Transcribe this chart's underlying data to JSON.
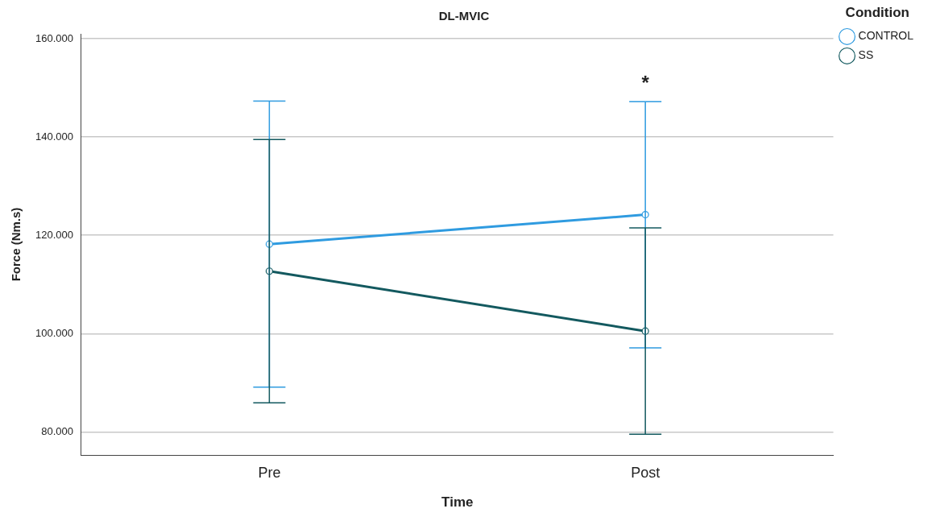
{
  "chart_data": {
    "type": "line",
    "title": "DL-MVIC",
    "xlabel": "Time",
    "ylabel": "Force (Nm.s)",
    "legend_title": "Condition",
    "categories": [
      "Pre",
      "Post"
    ],
    "series": [
      {
        "name": "CONTROL",
        "color": "#2f9be0",
        "values": [
          118.2,
          124.2
        ],
        "errors": [
          [
            89.1,
            147.3
          ],
          [
            97.1,
            147.2
          ]
        ]
      },
      {
        "name": "SS",
        "color": "#13595f",
        "values": [
          112.7,
          100.5
        ],
        "errors": [
          [
            85.9,
            139.5
          ],
          [
            79.5,
            121.5
          ]
        ]
      }
    ],
    "ylim": [
      75.3,
      161
    ],
    "yticks": [
      {
        "value": 80,
        "label": "80.000"
      },
      {
        "value": 100,
        "label": "100.000"
      },
      {
        "value": 120,
        "label": "120.000"
      },
      {
        "value": 140,
        "label": "140.000"
      },
      {
        "value": 160,
        "label": "160.000"
      }
    ],
    "grid": "y",
    "legend": "top right",
    "marker": "circle",
    "line_style": "solid",
    "annotations": [
      "*"
    ]
  }
}
